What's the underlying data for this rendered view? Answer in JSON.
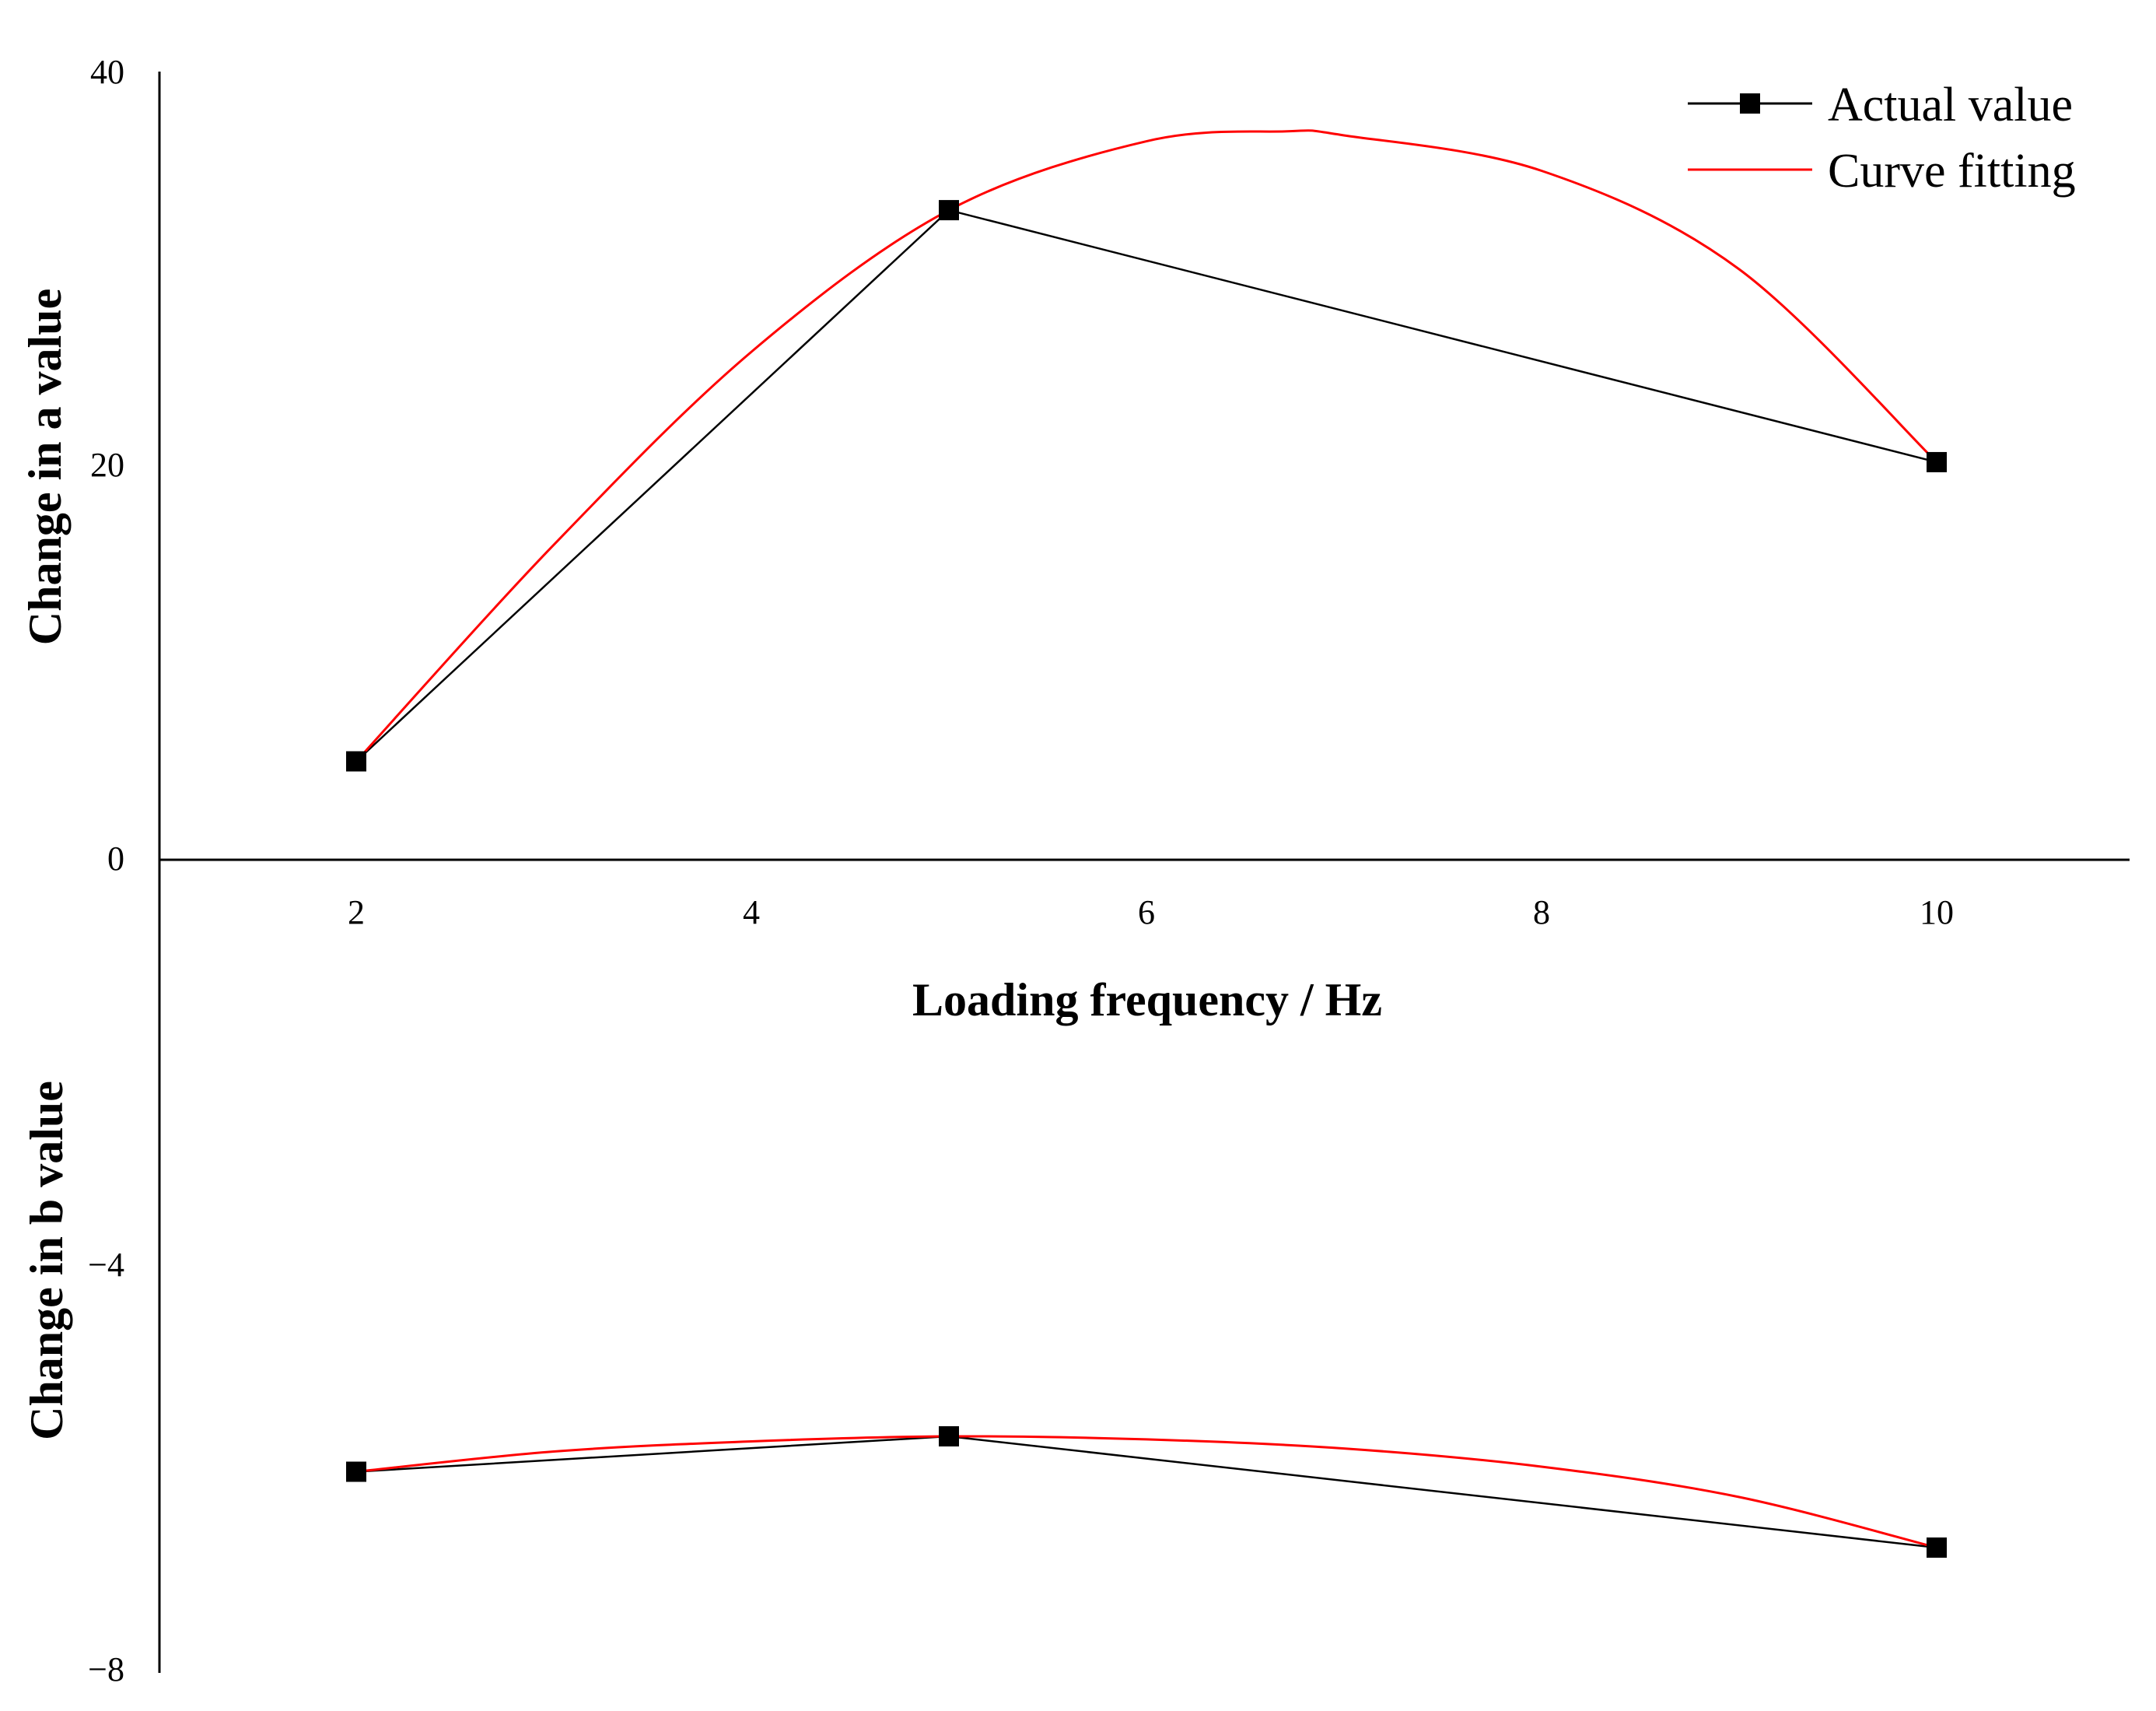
{
  "colors": {
    "actual": "#000000",
    "fit": "#ff0000",
    "axis": "#000000",
    "background": "#ffffff"
  },
  "chart_data": {
    "type": "line",
    "xlabel": "Loading frequency / Hz",
    "xlim": [
      0,
      12
    ],
    "x_ticks": [
      2,
      4,
      6,
      8,
      10
    ],
    "x_tick_labels": [
      "2",
      "4",
      "6",
      "8",
      "10"
    ],
    "legend": {
      "placement": "top-right",
      "entries": [
        "Actual value",
        "Curve fitting"
      ]
    },
    "panels": [
      {
        "name": "a",
        "ylabel": "Change in a value",
        "ylim": [
          0,
          40
        ],
        "y_ticks": [
          0,
          20,
          40
        ],
        "y_tick_labels": [
          "0",
          "20",
          "40"
        ],
        "series": [
          {
            "name": "Actual value",
            "x": [
              2,
              5,
              10
            ],
            "y": [
              5.0,
              33.0,
              20.2
            ],
            "marker": "square"
          },
          {
            "name": "Curve fitting",
            "x": [
              2,
              3,
              4,
              5,
              6,
              6.7,
              7,
              8,
              9,
              10
            ],
            "y": [
              5.0,
              16.0,
              25.8,
              33.0,
              36.5,
              37.0,
              36.8,
              35.0,
              30.0,
              20.2
            ]
          }
        ]
      },
      {
        "name": "b",
        "ylabel": "Change in b value",
        "ylim": [
          -8,
          0
        ],
        "y_ticks": [
          -4,
          -8
        ],
        "y_tick_labels": [
          "−4",
          "−8"
        ],
        "series": [
          {
            "name": "Actual value",
            "x": [
              2,
              5,
              10
            ],
            "y": [
              -6.05,
              -5.7,
              -6.8
            ],
            "marker": "square"
          },
          {
            "name": "Curve fitting",
            "x": [
              2,
              3,
              4,
              5,
              6,
              7,
              8,
              9,
              10
            ],
            "y": [
              -6.05,
              -5.85,
              -5.75,
              -5.7,
              -5.73,
              -5.82,
              -6.0,
              -6.3,
              -6.8
            ]
          }
        ]
      }
    ]
  }
}
